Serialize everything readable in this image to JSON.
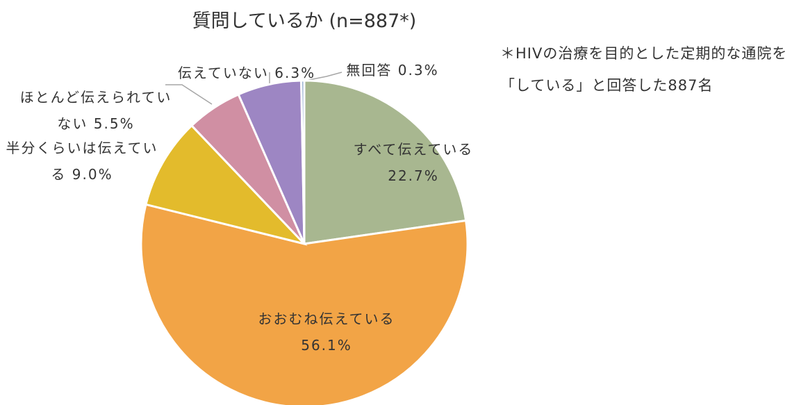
{
  "chart_data": {
    "type": "pie",
    "title": "質問しているか (n=887*)",
    "note": "＊HIVの治療を目的とした定期的な通院を「している」と回答した887名",
    "categories": [
      "すべて伝えている",
      "おおむね伝えている",
      "半分くらいは伝えている",
      "ほとんど伝えられていない",
      "伝えていない",
      "無回答"
    ],
    "values": [
      22.7,
      56.1,
      9.0,
      5.5,
      6.3,
      0.3
    ],
    "value_labels": [
      "22.7%",
      "56.1%",
      "9.0%",
      "5.5%",
      "6.3%",
      "0.3%"
    ],
    "colors": [
      "#a8b790",
      "#f2a446",
      "#e3bb2c",
      "#d08fa3",
      "#9d86c3",
      "#8ea8cc"
    ]
  }
}
